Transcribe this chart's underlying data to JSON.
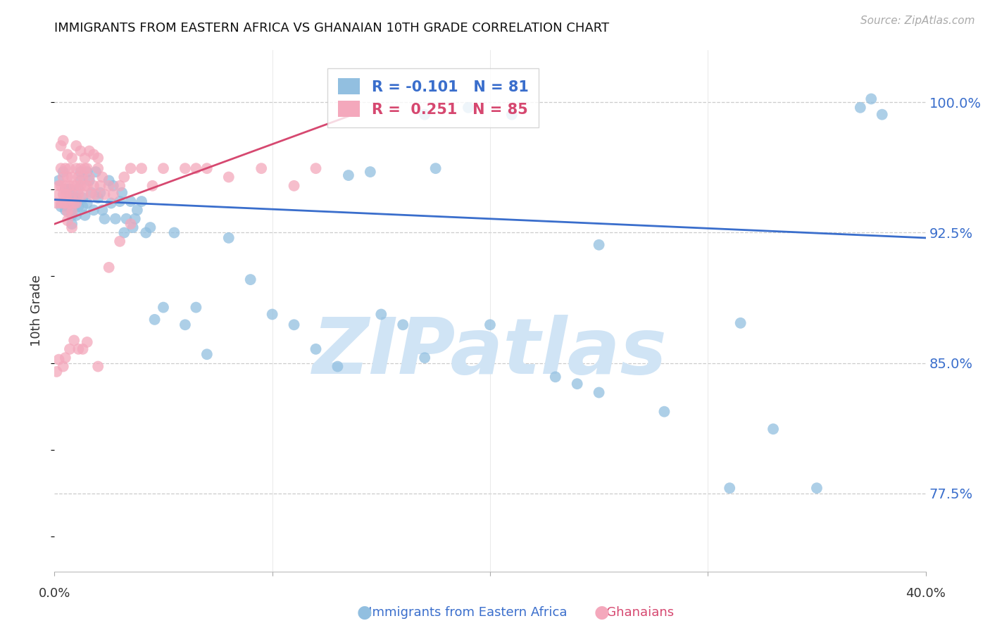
{
  "title": "IMMIGRANTS FROM EASTERN AFRICA VS GHANAIAN 10TH GRADE CORRELATION CHART",
  "source_text": "Source: ZipAtlas.com",
  "ylabel": "10th Grade",
  "ytick_labels": [
    "77.5%",
    "85.0%",
    "92.5%",
    "100.0%"
  ],
  "ytick_values": [
    0.775,
    0.85,
    0.925,
    1.0
  ],
  "xlim": [
    0.0,
    0.4
  ],
  "ylim": [
    0.73,
    1.03
  ],
  "legend_blue_R": "-0.101",
  "legend_blue_N": "81",
  "legend_pink_R": "0.251",
  "legend_pink_N": "85",
  "blue_color": "#92BFE0",
  "pink_color": "#F4A8BC",
  "blue_line_color": "#3A6ECC",
  "pink_line_color": "#D64870",
  "watermark_color": "#D0E4F5",
  "blue_trend_x": [
    0.0,
    0.4
  ],
  "blue_trend_y": [
    0.944,
    0.922
  ],
  "pink_trend_x": [
    0.0,
    0.135
  ],
  "pink_trend_y": [
    0.93,
    0.992
  ],
  "blue_scatter_x": [
    0.002,
    0.003,
    0.004,
    0.005,
    0.005,
    0.006,
    0.006,
    0.007,
    0.007,
    0.008,
    0.008,
    0.009,
    0.009,
    0.01,
    0.01,
    0.011,
    0.011,
    0.012,
    0.012,
    0.013,
    0.013,
    0.014,
    0.015,
    0.015,
    0.016,
    0.017,
    0.018,
    0.019,
    0.02,
    0.021,
    0.022,
    0.023,
    0.025,
    0.026,
    0.027,
    0.028,
    0.03,
    0.031,
    0.032,
    0.033,
    0.035,
    0.036,
    0.037,
    0.038,
    0.04,
    0.042,
    0.044,
    0.046,
    0.05,
    0.055,
    0.06,
    0.065,
    0.07,
    0.08,
    0.09,
    0.1,
    0.11,
    0.12,
    0.13,
    0.15,
    0.16,
    0.17,
    0.2,
    0.23,
    0.25,
    0.28,
    0.17,
    0.19,
    0.21,
    0.24,
    0.25,
    0.315,
    0.33,
    0.35,
    0.37,
    0.375,
    0.38,
    0.31,
    0.145,
    0.175,
    0.135
  ],
  "blue_scatter_y": [
    0.955,
    0.94,
    0.96,
    0.95,
    0.938,
    0.95,
    0.94,
    0.95,
    0.945,
    0.935,
    0.93,
    0.945,
    0.94,
    0.945,
    0.935,
    0.95,
    0.94,
    0.96,
    0.955,
    0.945,
    0.94,
    0.935,
    0.96,
    0.942,
    0.955,
    0.948,
    0.938,
    0.96,
    0.945,
    0.948,
    0.938,
    0.933,
    0.955,
    0.942,
    0.952,
    0.933,
    0.943,
    0.948,
    0.925,
    0.933,
    0.943,
    0.928,
    0.933,
    0.938,
    0.943,
    0.925,
    0.928,
    0.875,
    0.882,
    0.925,
    0.872,
    0.882,
    0.855,
    0.922,
    0.898,
    0.878,
    0.872,
    0.858,
    0.848,
    0.878,
    0.872,
    0.853,
    0.872,
    0.842,
    0.833,
    0.822,
    0.993,
    0.997,
    0.993,
    0.838,
    0.918,
    0.873,
    0.812,
    0.778,
    0.997,
    1.002,
    0.993,
    0.778,
    0.96,
    0.962,
    0.958
  ],
  "pink_scatter_x": [
    0.001,
    0.002,
    0.002,
    0.003,
    0.003,
    0.003,
    0.004,
    0.004,
    0.004,
    0.005,
    0.005,
    0.005,
    0.005,
    0.006,
    0.006,
    0.006,
    0.007,
    0.007,
    0.007,
    0.008,
    0.008,
    0.008,
    0.009,
    0.009,
    0.01,
    0.01,
    0.01,
    0.011,
    0.011,
    0.012,
    0.012,
    0.013,
    0.013,
    0.014,
    0.014,
    0.015,
    0.015,
    0.016,
    0.017,
    0.018,
    0.019,
    0.02,
    0.021,
    0.022,
    0.023,
    0.025,
    0.027,
    0.03,
    0.032,
    0.035,
    0.04,
    0.045,
    0.05,
    0.06,
    0.065,
    0.07,
    0.08,
    0.095,
    0.11,
    0.12,
    0.003,
    0.004,
    0.006,
    0.008,
    0.01,
    0.012,
    0.014,
    0.016,
    0.018,
    0.02,
    0.005,
    0.007,
    0.009,
    0.011,
    0.013,
    0.015,
    0.006,
    0.008,
    0.004,
    0.02,
    0.025,
    0.03,
    0.035,
    0.002,
    0.001
  ],
  "pink_scatter_y": [
    0.942,
    0.947,
    0.952,
    0.962,
    0.952,
    0.942,
    0.957,
    0.947,
    0.942,
    0.962,
    0.952,
    0.942,
    0.947,
    0.957,
    0.947,
    0.937,
    0.962,
    0.952,
    0.942,
    0.957,
    0.947,
    0.937,
    0.952,
    0.942,
    0.962,
    0.952,
    0.942,
    0.957,
    0.947,
    0.962,
    0.952,
    0.957,
    0.947,
    0.962,
    0.952,
    0.962,
    0.952,
    0.957,
    0.947,
    0.952,
    0.947,
    0.962,
    0.952,
    0.957,
    0.947,
    0.952,
    0.947,
    0.952,
    0.957,
    0.962,
    0.962,
    0.952,
    0.962,
    0.962,
    0.962,
    0.962,
    0.957,
    0.962,
    0.952,
    0.962,
    0.975,
    0.978,
    0.97,
    0.968,
    0.975,
    0.972,
    0.968,
    0.972,
    0.97,
    0.968,
    0.853,
    0.858,
    0.863,
    0.858,
    0.858,
    0.862,
    0.932,
    0.928,
    0.848,
    0.848,
    0.905,
    0.92,
    0.93,
    0.852,
    0.845
  ]
}
